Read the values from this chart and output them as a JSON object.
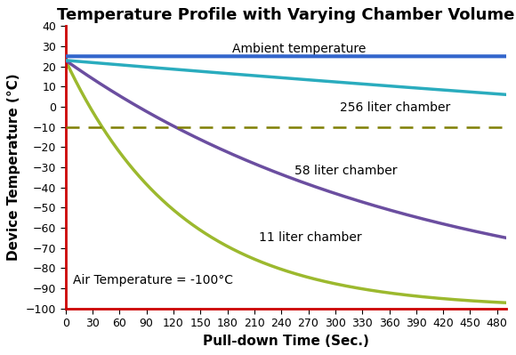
{
  "title": "Temperature Profile with Varying Chamber Volume",
  "xlabel": "Pull-down Time (Sec.)",
  "ylabel": "Device Temperature (°C)",
  "xlim": [
    0,
    490
  ],
  "ylim": [
    -100,
    40
  ],
  "xticks": [
    0,
    30,
    60,
    90,
    120,
    150,
    180,
    210,
    240,
    270,
    300,
    330,
    360,
    390,
    420,
    450,
    480
  ],
  "yticks": [
    -100,
    -90,
    -80,
    -70,
    -60,
    -50,
    -40,
    -30,
    -20,
    -10,
    0,
    10,
    20,
    30,
    40
  ],
  "ambient_value": 25,
  "ambient_color": "#3366CC",
  "ambient_label": "Ambient temperature",
  "dashed_line_y": -10,
  "dashed_color": "#7F7F00",
  "curve_256_color": "#2AACBE",
  "curve_58_color": "#6B4EA0",
  "curve_11_color": "#9CB92E",
  "curve_256_label": "256 liter chamber",
  "curve_58_label": "58 liter chamber",
  "curve_11_label": "11 liter chamber",
  "annotation_air": "Air Temperature = -100°C",
  "start_temp": 23,
  "tau_256": 3300,
  "tau_58": 390,
  "tau_11": 130,
  "air_temp": -100,
  "spine_color": "#CC0000",
  "title_fontsize": 13,
  "label_fontsize": 11,
  "tick_fontsize": 9,
  "annotation_fontsize": 10,
  "linewidth": 2.5,
  "ambient_linewidth": 3.0,
  "figwidth": 5.8,
  "figheight": 3.99,
  "dpi": 100
}
